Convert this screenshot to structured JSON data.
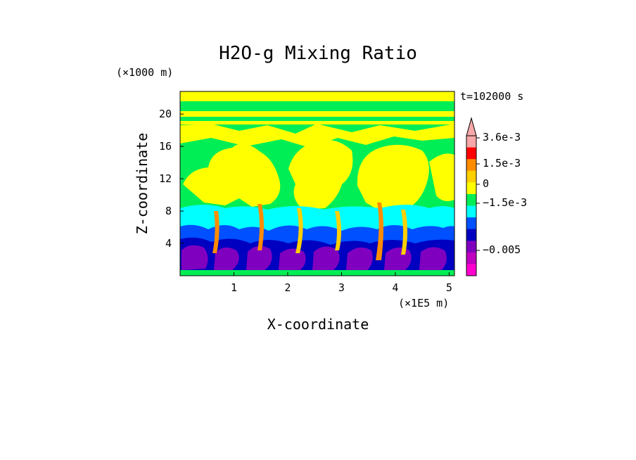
{
  "chart_data": {
    "type": "heatmap",
    "title": "H2O-g Mixing Ratio",
    "xlabel": "X-coordinate",
    "ylabel": "Z-coordinate",
    "x_unit": "(×1E5 m)",
    "y_unit": "(×1000 m)",
    "time_label": "t=102000 s",
    "xlim": [
      0,
      5.1
    ],
    "ylim": [
      0,
      22.8
    ],
    "x_ticks": [
      "1",
      "2",
      "3",
      "4",
      "5"
    ],
    "y_ticks": [
      "4",
      "8",
      "12",
      "16",
      "20"
    ],
    "colorbar": {
      "levels_top_to_bottom": [
        "#f7a8a8",
        "#ff0000",
        "#ff8c00",
        "#ffd000",
        "#ffff00",
        "#00ee55",
        "#00ffff",
        "#0050ff",
        "#0000c0",
        "#8000c0",
        "#c000c0",
        "#ff00d0"
      ],
      "tick_labels": [
        "3.6e-3",
        "1.5e-3",
        "0",
        "−1.5e-3",
        "−0.005"
      ]
    },
    "regions": [
      {
        "name": "upper-band",
        "z_range": [
          17.5,
          22.8
        ],
        "level": "mixed yellow/green"
      },
      {
        "name": "yellow-plumes",
        "z_range": [
          8.5,
          17.5
        ],
        "level": "0 to slightly positive"
      },
      {
        "name": "cyan-layer",
        "z_range": [
          6.5,
          9
        ],
        "level": "slightly negative"
      },
      {
        "name": "blue-layer",
        "z_range": [
          3.5,
          7
        ],
        "level": "−1.5e-3"
      },
      {
        "name": "purple-base",
        "z_range": [
          0.5,
          4
        ],
        "level": "−0.005"
      }
    ]
  }
}
